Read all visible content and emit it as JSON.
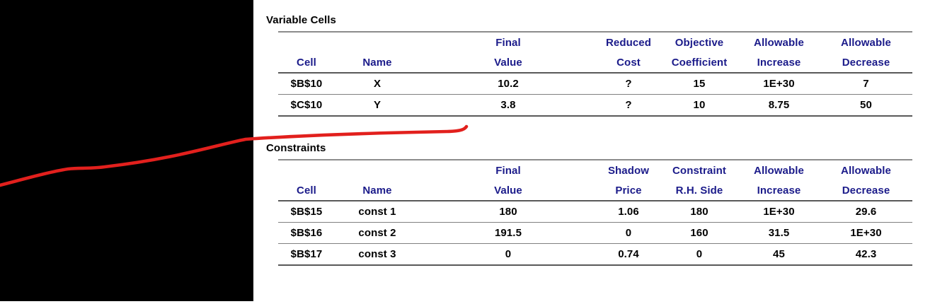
{
  "colors": {
    "header_text": "#1b1b8a",
    "body_text": "#000000",
    "annotation_red": "#e2201d",
    "redaction_black": "#000000",
    "rule_light": "#8c8c8c",
    "rule_dark": "#595959",
    "rule_row": "#808080"
  },
  "tables": [
    {
      "title": "Variable Cells",
      "header_line1": [
        "",
        "",
        "Final",
        "Reduced",
        "Objective",
        "Allowable",
        "Allowable"
      ],
      "header_line2": [
        "Cell",
        "Name",
        "Value",
        "Cost",
        "Coefficient",
        "Increase",
        "Decrease"
      ],
      "rows": [
        [
          "$B$10",
          "X",
          "10.2",
          "?",
          "15",
          "1E+30",
          "7"
        ],
        [
          "$C$10",
          "Y",
          "3.8",
          "?",
          "10",
          "8.75",
          "50"
        ]
      ]
    },
    {
      "title": "Constraints",
      "header_line1": [
        "",
        "",
        "Final",
        "Shadow",
        "Constraint",
        "Allowable",
        "Allowable"
      ],
      "header_line2": [
        "Cell",
        "Name",
        "Value",
        "Price",
        "R.H. Side",
        "Increase",
        "Decrease"
      ],
      "rows": [
        [
          "$B$15",
          "const 1",
          "180",
          "1.06",
          "180",
          "1E+30",
          "29.6"
        ],
        [
          "$B$16",
          "const 2",
          "191.5",
          "0",
          "160",
          "31.5",
          "1E+30"
        ],
        [
          "$B$17",
          "const 3",
          "0",
          "0.74",
          "0",
          "45",
          "42.3"
        ]
      ]
    }
  ]
}
